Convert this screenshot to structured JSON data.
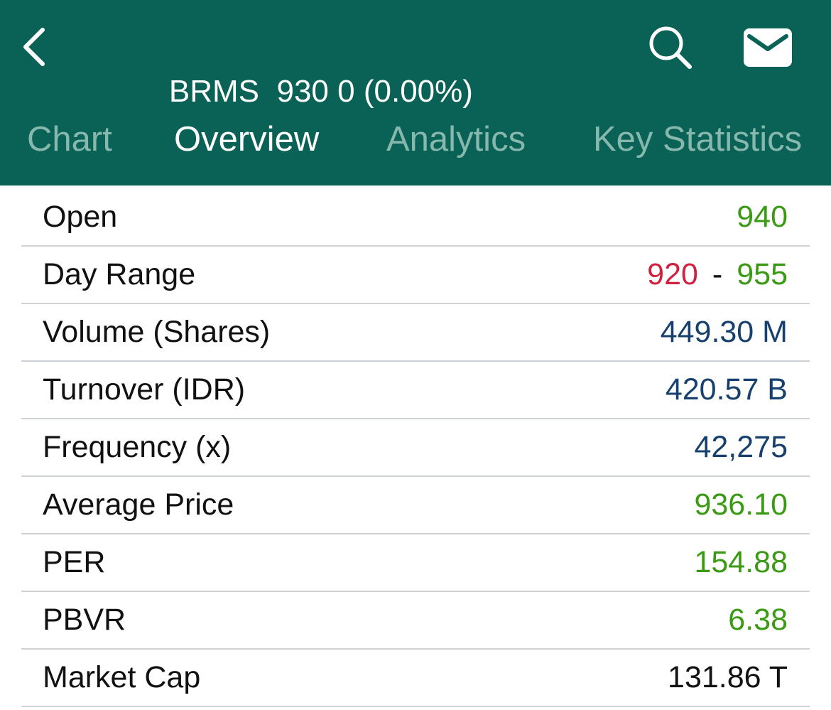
{
  "header": {
    "back_icon": "chevron-left-icon",
    "symbol": "BRMS",
    "price": "930",
    "change": "0",
    "change_pct": "(0.00%)",
    "search_icon": "search-icon",
    "mail_icon": "mail-icon"
  },
  "tabs": [
    {
      "label": "Chart",
      "active": false
    },
    {
      "label": "Overview",
      "active": true
    },
    {
      "label": "Analytics",
      "active": false
    },
    {
      "label": "Key Statistics",
      "active": false
    }
  ],
  "colors": {
    "header_bg": "#0a6155",
    "tab_inactive": "#86b8ae",
    "tab_active": "#ffffff",
    "up": "#3a9a14",
    "down": "#d0213f",
    "neutral_blue": "#17406e",
    "text": "#111111",
    "divider": "#cfd3d6"
  },
  "overview": {
    "open": {
      "label": "Open",
      "value": "940"
    },
    "day_range": {
      "label": "Day Range",
      "low": "920",
      "separator": "-",
      "high": "955"
    },
    "volume": {
      "label": "Volume (Shares)",
      "value": "449.30 M"
    },
    "turnover": {
      "label": "Turnover (IDR)",
      "value": "420.57 B"
    },
    "frequency": {
      "label": "Frequency (x)",
      "value": "42,275"
    },
    "average_price": {
      "label": "Average Price",
      "value": "936.10"
    },
    "per": {
      "label": "PER",
      "value": "154.88"
    },
    "pbvr": {
      "label": "PBVR",
      "value": "6.38"
    },
    "market_cap": {
      "label": "Market Cap",
      "value": "131.86 T"
    }
  }
}
